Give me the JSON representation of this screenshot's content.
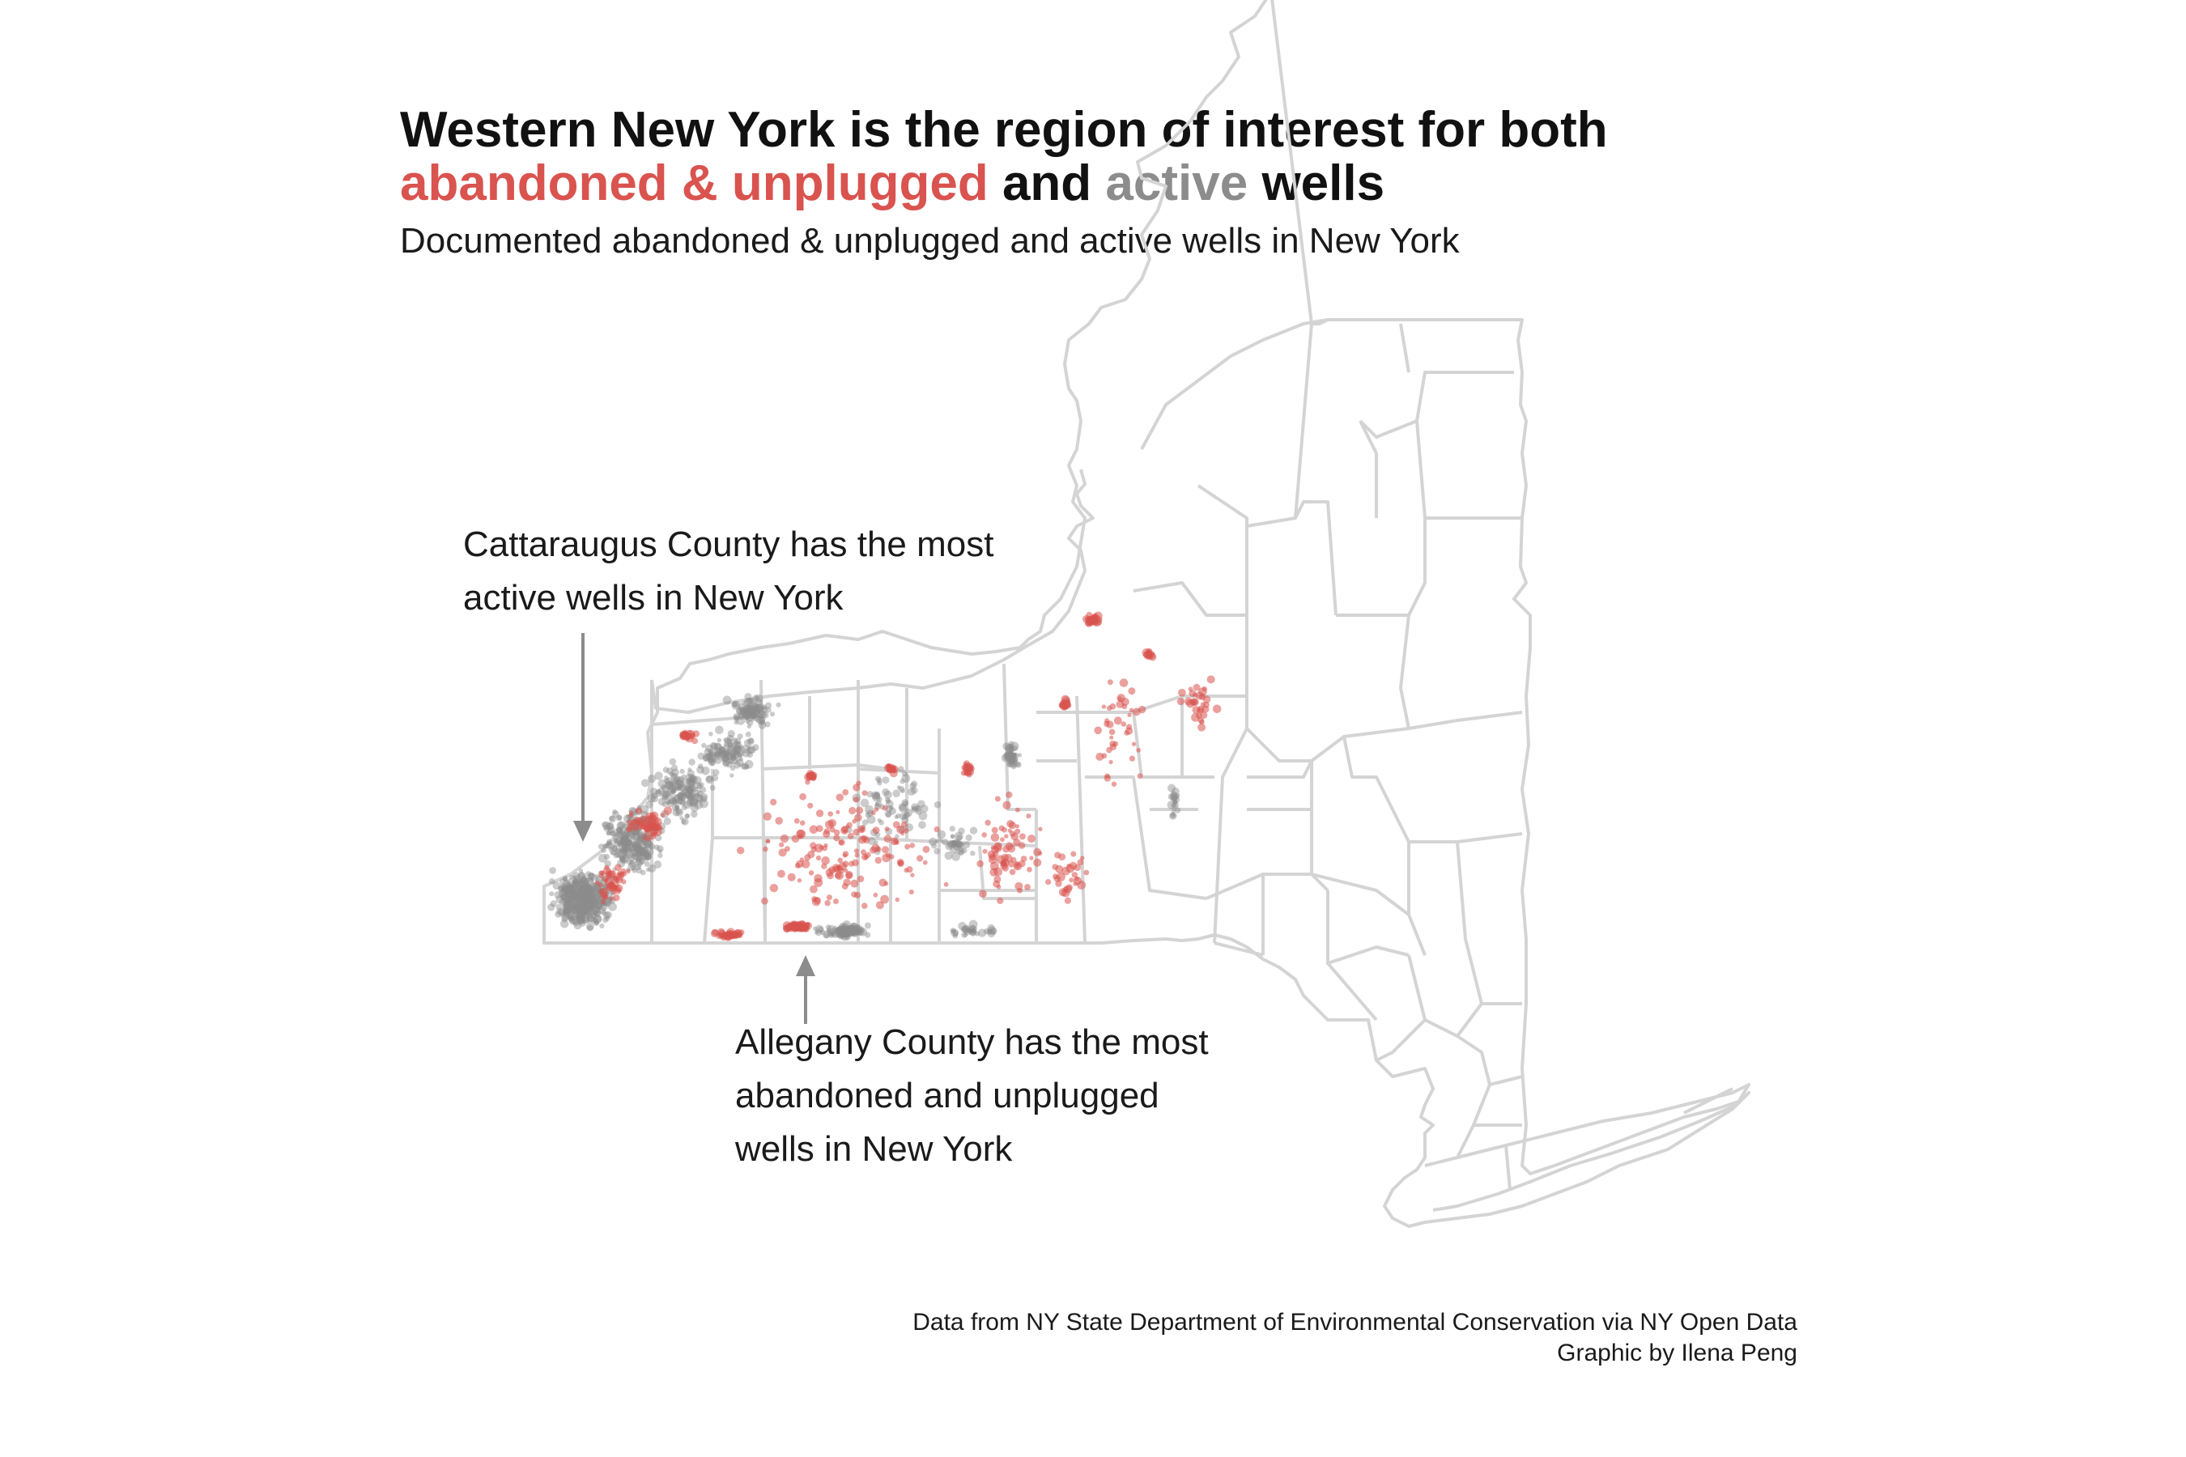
{
  "header": {
    "title_line1": "Western New York is the region of interest for both",
    "title_abandoned": "abandoned & unplugged",
    "title_and": " and ",
    "title_active": "active",
    "title_wells": " wells",
    "subtitle": "Documented abandoned & unplugged and active wells in New York"
  },
  "annotations": {
    "cattaraugus": [
      "Cattaraugus County has the most",
      "active wells in New York"
    ],
    "allegany": [
      "Allegany County has the most",
      "abandoned and unplugged",
      "wells in New York"
    ]
  },
  "caption": {
    "source": "Data from NY State Department of Environmental Conservation via NY Open Data",
    "credit": "Graphic by Ilena Peng"
  },
  "colors": {
    "abandoned": "#d9534f",
    "active": "#8c8c8c",
    "county_border": "#d4d4d4",
    "arrow": "#8c8c8c"
  },
  "legend": {
    "abandoned": "abandoned & unplugged",
    "active": "active"
  }
}
